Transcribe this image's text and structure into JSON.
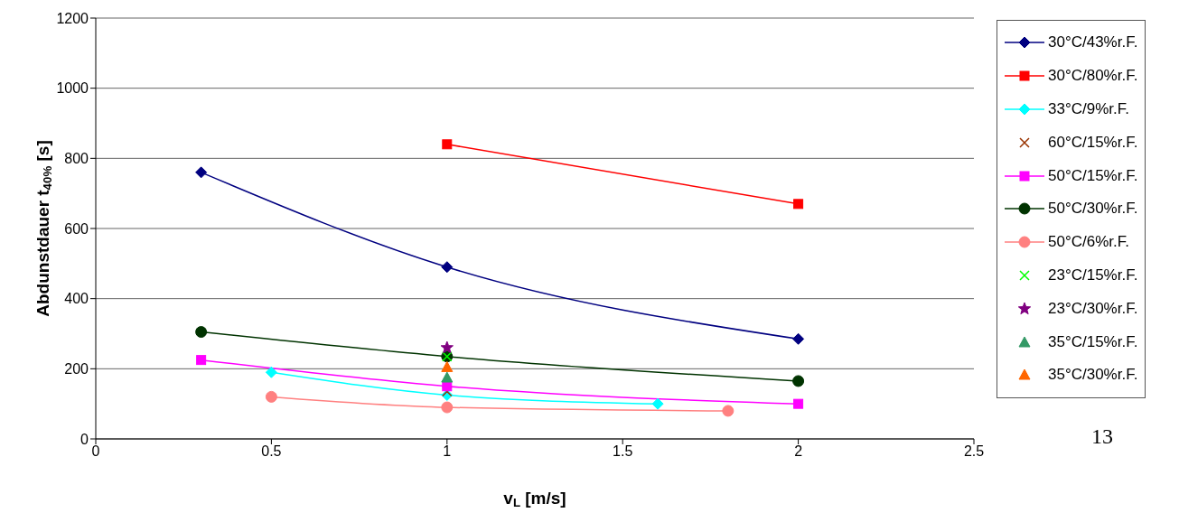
{
  "chart_data": {
    "type": "line",
    "xlabel": "v$_{L}$ [m/s]",
    "ylabel": "Abdunstdauer t$_{40%}$ [s]",
    "xlim": [
      0,
      2.5
    ],
    "xticks": [
      0,
      0.5,
      1,
      1.5,
      2,
      2.5
    ],
    "ylim": [
      0,
      1200
    ],
    "yticks": [
      0,
      200,
      400,
      600,
      800,
      1000,
      1200
    ],
    "grid": "y",
    "legend": "right",
    "annotations": [
      "13"
    ],
    "series": [
      {
        "name": "30°C/43%r.F.",
        "color": "#000080",
        "marker": "diamond",
        "x": [
          0.3,
          1,
          2
        ],
        "values": [
          760,
          490,
          285
        ]
      },
      {
        "name": "30°C/80%r.F.",
        "color": "#ff0000",
        "marker": "square",
        "x": [
          1,
          2
        ],
        "values": [
          840,
          670
        ]
      },
      {
        "name": "33°C/9%r.F.",
        "color": "#00ffff",
        "marker": "diamond",
        "x": [
          0.5,
          1,
          1.6
        ],
        "values": [
          190,
          125,
          100
        ]
      },
      {
        "name": "60°C/15%r.F.",
        "color": "#993300",
        "type": "scatter",
        "marker": "cross",
        "x": [
          1
        ],
        "values": [
          135
        ]
      },
      {
        "name": "50°C/15%r.F.",
        "color": "#ff00ff",
        "marker": "square",
        "x": [
          0.3,
          1,
          2
        ],
        "values": [
          225,
          150,
          100
        ]
      },
      {
        "name": "50°C/30%r.F.",
        "color": "#003300",
        "marker": "circle",
        "x": [
          0.3,
          1,
          2
        ],
        "values": [
          305,
          235,
          165
        ]
      },
      {
        "name": "50°C/6%r.F.",
        "color": "#ff8080",
        "marker": "circle",
        "x": [
          0.5,
          1,
          1.8
        ],
        "values": [
          120,
          90,
          80
        ]
      },
      {
        "name": "23°C/15%r.F.",
        "color": "#00ff00",
        "type": "scatter",
        "marker": "cross",
        "x": [
          1
        ],
        "values": [
          235
        ]
      },
      {
        "name": "23°C/30%r.F.",
        "color": "#800080",
        "type": "scatter",
        "marker": "star",
        "x": [
          1
        ],
        "values": [
          260
        ]
      },
      {
        "name": "35°C/15%r.F.",
        "color": "#339966",
        "type": "scatter",
        "marker": "triangle",
        "x": [
          1
        ],
        "values": [
          175
        ]
      },
      {
        "name": "35°C/30%r.F.",
        "color": "#ff6600",
        "type": "scatter",
        "marker": "triangle",
        "x": [
          1
        ],
        "values": [
          205
        ]
      }
    ]
  }
}
